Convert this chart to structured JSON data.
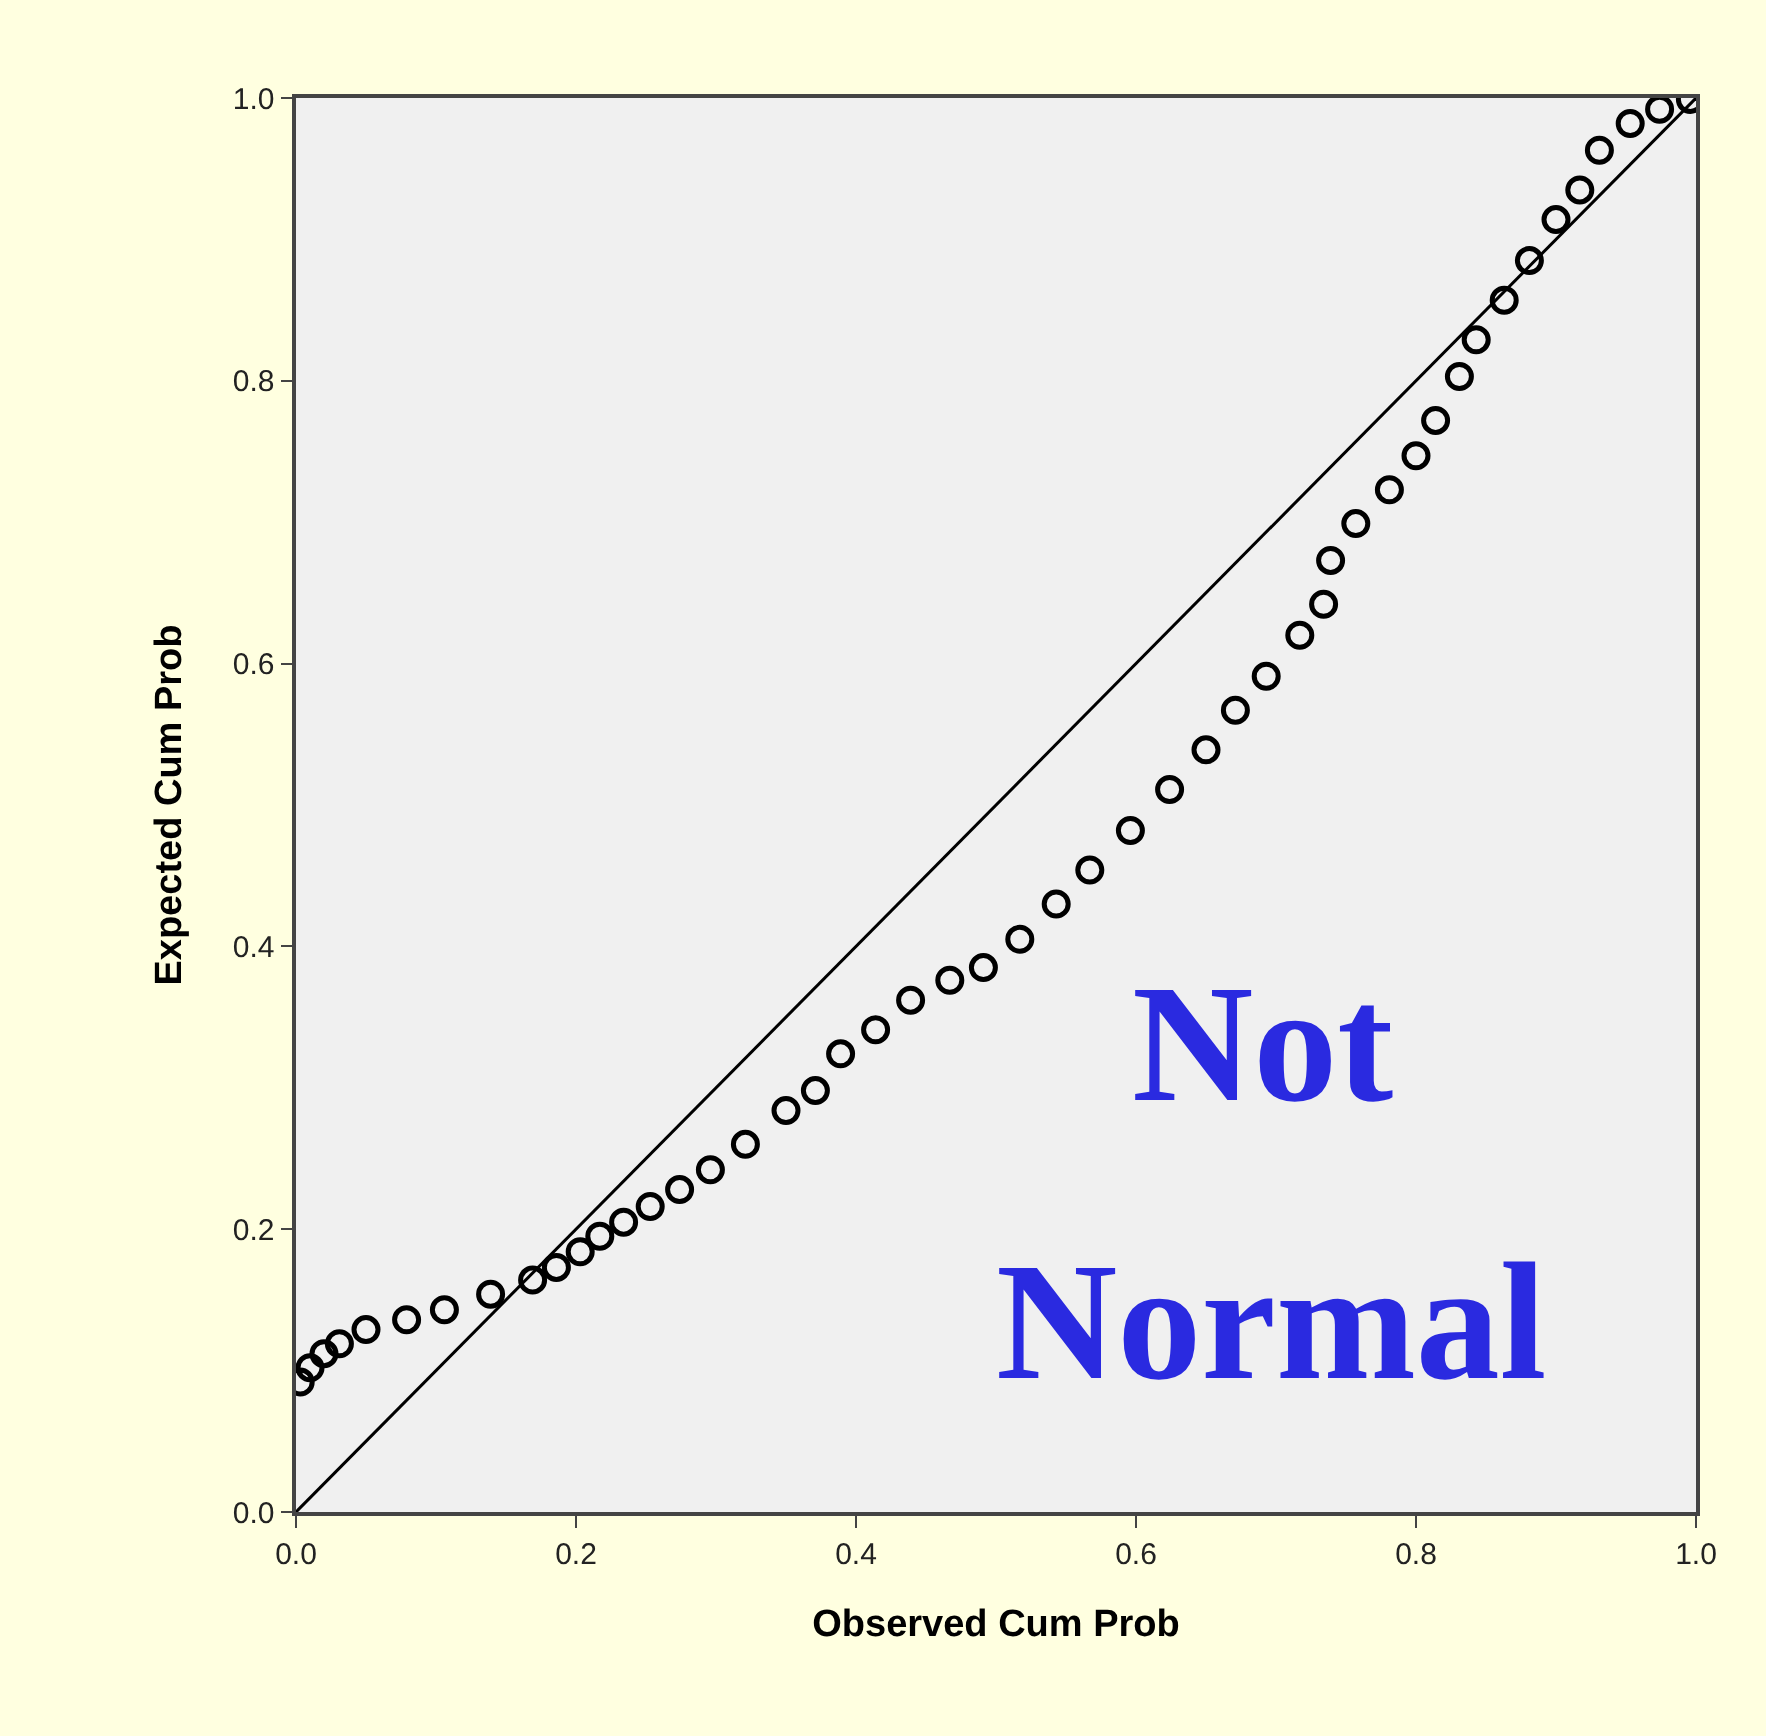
{
  "chart_data": {
    "type": "scatter",
    "xlabel": "Observed Cum Prob",
    "ylabel": "Expected Cum Prob",
    "annotations": [
      "Not Normal"
    ],
    "xlim": [
      0,
      1
    ],
    "ylim": [
      0,
      1
    ],
    "xticks": [
      {
        "value": 0,
        "label": "0.0"
      },
      {
        "value": 0.2,
        "label": "0.2"
      },
      {
        "value": 0.4,
        "label": "0.4"
      },
      {
        "value": 0.6,
        "label": "0.6"
      },
      {
        "value": 0.8,
        "label": "0.8"
      },
      {
        "value": 1,
        "label": "1.0"
      }
    ],
    "yticks": [
      {
        "value": 0,
        "label": "0.0"
      },
      {
        "value": 0.2,
        "label": "0.2"
      },
      {
        "value": 0.4,
        "label": "0.4"
      },
      {
        "value": 0.6,
        "label": "0.6"
      },
      {
        "value": 0.8,
        "label": "0.8"
      },
      {
        "value": 1,
        "label": "1.0"
      }
    ],
    "grid": false,
    "series": [
      {
        "marker": "circle",
        "color": "#000000",
        "x": [
          0.003,
          0.01,
          0.02,
          0.031,
          0.05,
          0.079,
          0.106,
          0.139,
          0.169,
          0.186,
          0.203,
          0.217,
          0.234,
          0.253,
          0.274,
          0.296,
          0.321,
          0.35,
          0.371,
          0.389,
          0.414,
          0.439,
          0.467,
          0.491,
          0.517,
          0.543,
          0.567,
          0.596,
          0.624,
          0.65,
          0.671,
          0.693,
          0.717,
          0.734,
          0.739,
          0.757,
          0.781,
          0.8,
          0.814,
          0.831,
          0.843,
          0.863,
          0.881,
          0.9,
          0.917,
          0.931,
          0.953,
          0.974,
          0.996
        ],
        "values": [
          0.092,
          0.102,
          0.112,
          0.119,
          0.129,
          0.136,
          0.143,
          0.154,
          0.164,
          0.173,
          0.184,
          0.195,
          0.205,
          0.216,
          0.228,
          0.242,
          0.26,
          0.284,
          0.298,
          0.324,
          0.341,
          0.362,
          0.376,
          0.385,
          0.405,
          0.43,
          0.454,
          0.482,
          0.511,
          0.539,
          0.567,
          0.591,
          0.62,
          0.642,
          0.673,
          0.699,
          0.723,
          0.747,
          0.772,
          0.803,
          0.829,
          0.857,
          0.885,
          0.914,
          0.935,
          0.963,
          0.982,
          0.992,
          0.999
        ]
      },
      {
        "type": "line",
        "marker": "none",
        "color": "#000000",
        "x": [
          0,
          1
        ],
        "values": [
          0,
          1
        ]
      }
    ]
  }
}
